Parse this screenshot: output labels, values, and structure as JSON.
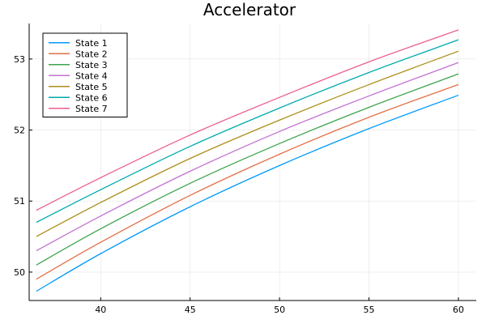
{
  "chart_data": {
    "type": "line",
    "title": "Accelerator",
    "xlabel": "",
    "ylabel": "",
    "xlim": [
      36,
      61
    ],
    "ylim": [
      49.6,
      53.5
    ],
    "xticks": [
      40,
      45,
      50,
      55,
      60
    ],
    "yticks": [
      50,
      51,
      52,
      53
    ],
    "grid": true,
    "legend_position": "top-left",
    "x": [
      36.4,
      40,
      45,
      50,
      55,
      60
    ],
    "series": [
      {
        "name": "State 1",
        "color": "#009AFA",
        "values": [
          49.73,
          50.26,
          50.92,
          51.5,
          52.02,
          52.49
        ]
      },
      {
        "name": "State 2",
        "color": "#E36F47",
        "values": [
          49.9,
          50.42,
          51.08,
          51.66,
          52.18,
          52.64
        ]
      },
      {
        "name": "State 3",
        "color": "#3EA44E",
        "values": [
          50.1,
          50.61,
          51.25,
          51.81,
          52.32,
          52.79
        ]
      },
      {
        "name": "State 4",
        "color": "#C371D2",
        "values": [
          50.3,
          50.79,
          51.42,
          51.98,
          52.48,
          52.95
        ]
      },
      {
        "name": "State 5",
        "color": "#AC8E18",
        "values": [
          50.5,
          50.98,
          51.6,
          52.14,
          52.64,
          53.11
        ]
      },
      {
        "name": "State 6",
        "color": "#00AAAE",
        "values": [
          50.7,
          51.16,
          51.77,
          52.31,
          52.81,
          53.27
        ]
      },
      {
        "name": "State 7",
        "color": "#ED5E93",
        "values": [
          50.87,
          51.33,
          51.93,
          52.46,
          52.96,
          53.41
        ]
      }
    ]
  }
}
